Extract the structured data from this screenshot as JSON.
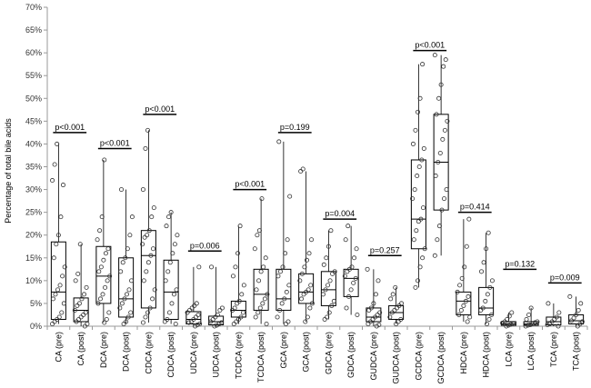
{
  "chart_data": {
    "type": "box-scatter",
    "title": "",
    "xlabel": "",
    "ylabel": "Percentage of total bile acids",
    "ylim": [
      0,
      70
    ],
    "ytick_step": 5,
    "ytick_labels": [
      "0%",
      "5%",
      "10%",
      "15%",
      "20%",
      "25%",
      "30%",
      "35%",
      "40%",
      "45%",
      "50%",
      "55%",
      "60%",
      "65%",
      "70%"
    ],
    "grid": false,
    "colors": {
      "box": "#000000",
      "point_stroke": "#333333",
      "axis": "#999999"
    },
    "categories": [
      "CA (pre)",
      "CA (post)",
      "DCA (pre)",
      "DCA (post)",
      "CDCA (pre)",
      "CDCA (post)",
      "UDCA (pre)",
      "UDCA (post)",
      "TCDCA (pre)",
      "TCDCA (post)",
      "GCA (pre)",
      "GCA (post)",
      "GDCA (pre)",
      "GDCA (post)",
      "GUDCA (pre)",
      "GUDCA (post)",
      "GCDCA (pre)",
      "GCDCA (post)",
      "HDCA (pre)",
      "HDCA (post)",
      "LCA (pre)",
      "LCA (post)",
      "TCA (pre)",
      "TCA (post)"
    ],
    "boxes": [
      {
        "q1": 1.5,
        "median": 7.5,
        "q3": 18.5,
        "min": 0.5,
        "max": 40
      },
      {
        "q1": 1.0,
        "median": 3.5,
        "q3": 6.2,
        "min": 0.0,
        "max": 18
      },
      {
        "q1": 5.0,
        "median": 11.0,
        "q3": 17.5,
        "min": 0.8,
        "max": 36.5
      },
      {
        "q1": 2.0,
        "median": 6.0,
        "q3": 15.0,
        "min": 0.5,
        "max": 30
      },
      {
        "q1": 4.0,
        "median": 15.5,
        "q3": 21.0,
        "min": 0.8,
        "max": 43
      },
      {
        "q1": 1.5,
        "median": 7.5,
        "q3": 14.5,
        "min": 0.5,
        "max": 25
      },
      {
        "q1": 0.5,
        "median": 1.5,
        "q3": 3.2,
        "min": 0.0,
        "max": 13
      },
      {
        "q1": 0.3,
        "median": 1.0,
        "q3": 2.2,
        "min": 0.0,
        "max": 13
      },
      {
        "q1": 2.0,
        "median": 3.5,
        "q3": 5.5,
        "min": 0.5,
        "max": 22
      },
      {
        "q1": 3.5,
        "median": 7.0,
        "q3": 12.5,
        "min": 0.5,
        "max": 28
      },
      {
        "q1": 3.5,
        "median": 6.0,
        "q3": 12.5,
        "min": 0.5,
        "max": 40.5
      },
      {
        "q1": 5.0,
        "median": 7.5,
        "q3": 11.5,
        "min": 1.0,
        "max": 34
      },
      {
        "q1": 4.5,
        "median": 8.0,
        "q3": 12.0,
        "min": 1.5,
        "max": 21
      },
      {
        "q1": 6.5,
        "median": 10.5,
        "q3": 12.5,
        "min": 2.5,
        "max": 22
      },
      {
        "q1": 1.0,
        "median": 2.0,
        "q3": 4.0,
        "min": 0.0,
        "max": 12.5
      },
      {
        "q1": 1.5,
        "median": 3.0,
        "q3": 4.5,
        "min": 0.5,
        "max": 8.5
      },
      {
        "q1": 17.0,
        "median": 23.5,
        "q3": 36.5,
        "min": 8.5,
        "max": 57.5
      },
      {
        "q1": 25.5,
        "median": 36.0,
        "q3": 46.5,
        "min": 15.5,
        "max": 59.5
      },
      {
        "q1": 2.5,
        "median": 5.5,
        "q3": 7.5,
        "min": 1.0,
        "max": 23.5
      },
      {
        "q1": 2.5,
        "median": 4.0,
        "q3": 8.5,
        "min": 0.5,
        "max": 20.5
      },
      {
        "q1": 0.2,
        "median": 0.5,
        "q3": 1.0,
        "min": 0.0,
        "max": 3.0
      },
      {
        "q1": 0.2,
        "median": 0.5,
        "q3": 1.0,
        "min": 0.0,
        "max": 4.0
      },
      {
        "q1": 0.3,
        "median": 1.0,
        "q3": 2.0,
        "min": 0.0,
        "max": 5.0
      },
      {
        "q1": 0.5,
        "median": 1.2,
        "q3": 2.5,
        "min": 0.0,
        "max": 6.5
      }
    ],
    "points": [
      [
        0.5,
        1.0,
        1.5,
        2,
        3,
        5,
        6,
        7,
        8,
        9,
        11,
        13,
        15,
        18,
        20,
        24,
        31,
        32,
        35.5,
        40
      ],
      [
        0.0,
        0.5,
        1.0,
        1.5,
        2,
        2.5,
        3,
        3.5,
        4.5,
        5,
        6,
        7,
        8.5,
        10,
        11.5,
        18
      ],
      [
        0.8,
        1.5,
        3,
        5,
        6,
        7,
        8.5,
        10,
        11,
        12,
        13,
        14.5,
        16,
        17,
        19,
        21,
        24,
        36.5
      ],
      [
        0.5,
        1.0,
        2,
        3,
        4,
        5,
        6,
        7,
        8,
        10,
        12,
        14,
        15,
        17,
        20,
        24,
        30
      ],
      [
        0.8,
        2,
        3,
        4,
        6,
        8,
        10,
        12,
        14,
        15.5,
        17,
        18,
        19.5,
        20,
        21,
        24,
        26,
        30,
        39,
        43
      ],
      [
        0.5,
        1.0,
        1.5,
        3,
        5,
        7,
        8,
        10,
        12,
        14,
        16,
        18,
        20,
        22,
        24,
        25
      ],
      [
        0.0,
        0.3,
        0.5,
        0.8,
        1,
        1.5,
        2,
        2.5,
        3,
        3.5,
        4,
        4.5,
        5,
        13
      ],
      [
        0.0,
        0.2,
        0.5,
        0.8,
        1,
        1.5,
        2,
        2.5,
        3.5,
        4,
        13
      ],
      [
        0.5,
        1,
        1.5,
        2,
        3,
        3.5,
        4,
        5,
        5.5,
        7,
        9,
        11,
        13,
        16,
        22
      ],
      [
        0.5,
        2,
        3,
        4,
        5,
        6,
        7,
        8,
        10,
        12,
        13,
        15,
        17,
        20,
        21,
        28
      ],
      [
        0.5,
        1,
        2,
        3.5,
        5,
        6,
        7.5,
        9,
        11,
        12,
        13,
        16,
        19,
        28.5,
        40.5
      ],
      [
        1,
        2,
        4,
        5,
        6,
        7,
        7.5,
        8,
        9,
        10,
        11.5,
        13,
        14.5,
        16,
        19,
        34,
        34.5
      ],
      [
        1.5,
        2,
        3,
        4.5,
        5.5,
        7,
        8,
        9,
        10,
        11.5,
        12,
        13.5,
        15,
        17.5,
        21
      ],
      [
        2.5,
        4,
        6.5,
        8,
        9.5,
        10.5,
        11,
        12,
        12.5,
        13,
        15,
        17,
        19,
        22
      ],
      [
        0.0,
        0.3,
        0.5,
        1,
        1.5,
        2,
        2.5,
        3,
        3.5,
        4,
        5,
        7,
        10,
        12.5
      ],
      [
        0.5,
        1,
        1.5,
        2,
        3,
        3.5,
        4,
        4.5,
        5,
        6,
        7,
        8.5
      ],
      [
        8.5,
        10,
        13,
        15,
        17,
        19,
        21,
        23,
        23.5,
        26,
        28,
        30,
        33,
        35,
        36.5,
        39,
        40,
        43,
        47,
        50,
        57.5
      ],
      [
        15.5,
        19,
        22,
        25.5,
        28,
        30,
        33,
        36,
        38,
        41,
        43,
        45,
        46.5,
        50,
        53,
        57,
        58.5,
        59.5
      ],
      [
        1,
        2,
        2.5,
        3.5,
        4.5,
        5.5,
        6.5,
        7.5,
        9,
        10.5,
        13,
        17.5,
        23.5
      ],
      [
        0.5,
        1.5,
        2.5,
        3.5,
        4,
        5.5,
        7,
        8.5,
        10,
        12,
        14,
        17,
        20.5
      ],
      [
        0.0,
        0.2,
        0.4,
        0.5,
        0.7,
        1.0,
        1.5,
        2.2,
        3.0
      ],
      [
        0.0,
        0.2,
        0.3,
        0.5,
        0.8,
        1.0,
        1.5,
        2.5,
        4.0
      ],
      [
        0.0,
        0.3,
        0.5,
        1.0,
        1.5,
        2.0,
        3,
        5
      ],
      [
        0.0,
        0.5,
        1.0,
        1.2,
        1.8,
        2.5,
        3.5,
        5,
        6.5
      ]
    ],
    "annotations": [
      {
        "pair": [
          0,
          1
        ],
        "text": "p<0.001",
        "y": 42.5
      },
      {
        "pair": [
          2,
          3
        ],
        "text": "p<0.001",
        "y": 39
      },
      {
        "pair": [
          4,
          5
        ],
        "text": "p<0.001",
        "y": 46.5
      },
      {
        "pair": [
          6,
          7
        ],
        "text": "p=0.006",
        "y": 16.5
      },
      {
        "pair": [
          8,
          9
        ],
        "text": "p<0.001",
        "y": 30
      },
      {
        "pair": [
          10,
          11
        ],
        "text": "p=0.199",
        "y": 42.5
      },
      {
        "pair": [
          12,
          13
        ],
        "text": "p=0.004",
        "y": 23.5
      },
      {
        "pair": [
          14,
          15
        ],
        "text": "p=0.257",
        "y": 15.5
      },
      {
        "pair": [
          16,
          17
        ],
        "text": "p<0.001",
        "y": 60.5
      },
      {
        "pair": [
          18,
          19
        ],
        "text": "p=0.414",
        "y": 25
      },
      {
        "pair": [
          20,
          21
        ],
        "text": "p=0.132",
        "y": 12.5
      },
      {
        "pair": [
          22,
          23
        ],
        "text": "p=0.009",
        "y": 9.5
      }
    ]
  }
}
